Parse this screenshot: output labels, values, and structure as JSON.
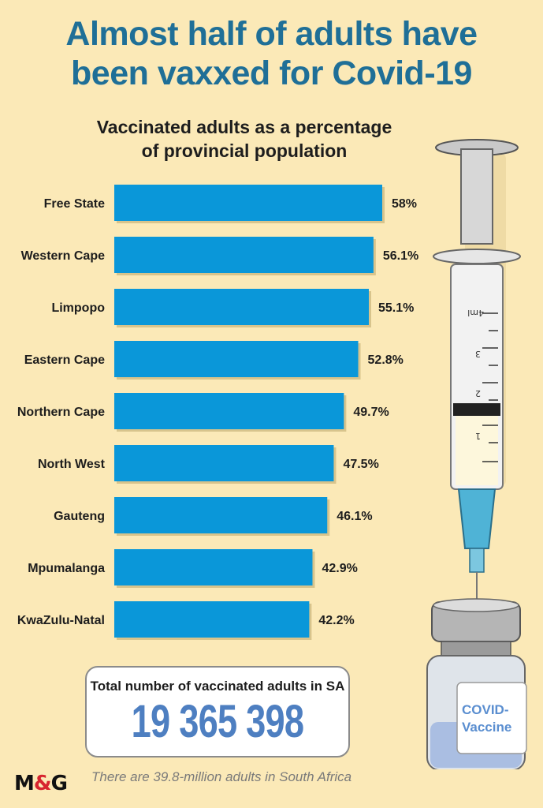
{
  "header": {
    "title_line1": "Almost half of adults have",
    "title_line2": "been vaxxed for Covid-19",
    "subtitle_line1": "Vaccinated adults as a percentage",
    "subtitle_line2": "of provincial population"
  },
  "chart_data": {
    "type": "bar",
    "orientation": "horizontal",
    "title": "Vaccinated adults as a percentage of provincial population",
    "categories": [
      "Free State",
      "Western Cape",
      "Limpopo",
      "Eastern Cape",
      "Northern Cape",
      "North West",
      "Gauteng",
      "Mpumalanga",
      "KwaZulu-Natal"
    ],
    "values": [
      58,
      56.1,
      55.1,
      52.8,
      49.7,
      47.5,
      46.1,
      42.9,
      42.2
    ],
    "value_labels": [
      "58%",
      "56.1%",
      "55.1%",
      "52.8%",
      "49.7%",
      "47.5%",
      "46.1%",
      "42.9%",
      "42.2%"
    ],
    "unit": "%",
    "bar_color": "#0a97d9",
    "grid": false,
    "legend": "none"
  },
  "total": {
    "label": "Total number of vaccinated adults in SA",
    "value": "19 365 398"
  },
  "illustration": {
    "syringe_marks": [
      "4ml",
      "3",
      "2",
      "1"
    ],
    "vial_label": [
      "COVID-",
      "Vaccine"
    ]
  },
  "footer": {
    "logo_left": "M",
    "logo_amp": "&",
    "logo_right": "G",
    "note": "There are 39.8-million adults in South Africa"
  },
  "colors": {
    "background": "#fbe9b7",
    "title": "#1f6f97",
    "bar": "#0a97d9",
    "total_value": "#4e7fc1"
  }
}
